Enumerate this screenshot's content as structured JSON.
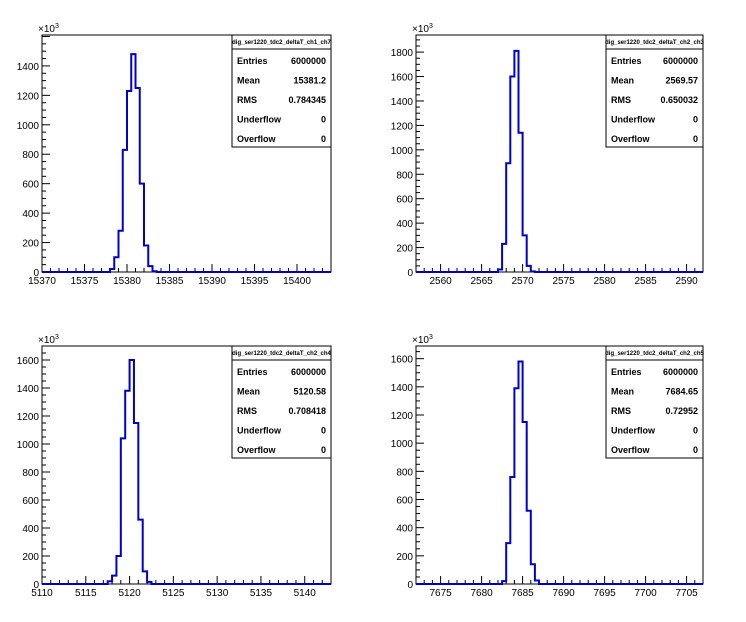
{
  "chart_data": [
    {
      "type": "histogram",
      "title": "dig_ser1220_tdc2_deltaT_ch1_ch7",
      "y_exponent": "10^3",
      "xlim": [
        15370,
        15404
      ],
      "ylim": [
        0,
        1610
      ],
      "x_ticks": [
        15370,
        15375,
        15380,
        15385,
        15390,
        15395,
        15400
      ],
      "y_ticks": [
        0,
        200,
        400,
        600,
        800,
        1000,
        1200,
        1400
      ],
      "bins": [
        {
          "x": 15378.0,
          "y": 20
        },
        {
          "x": 15378.5,
          "y": 100
        },
        {
          "x": 15379.0,
          "y": 280
        },
        {
          "x": 15379.5,
          "y": 830
        },
        {
          "x": 15380.0,
          "y": 1230
        },
        {
          "x": 15380.5,
          "y": 1480
        },
        {
          "x": 15381.0,
          "y": 1250
        },
        {
          "x": 15381.5,
          "y": 600
        },
        {
          "x": 15382.0,
          "y": 180
        },
        {
          "x": 15382.5,
          "y": 40
        },
        {
          "x": 15383.0,
          "y": 5
        }
      ],
      "stats": {
        "entries_label": "Entries",
        "entries": "6000000",
        "mean_label": "Mean",
        "mean": "15381.2",
        "rms_label": "RMS",
        "rms": "0.784345",
        "underflow_label": "Underflow",
        "underflow": "0",
        "overflow_label": "Overflow",
        "overflow": "0"
      },
      "line_color": "#0000cc"
    },
    {
      "type": "histogram",
      "title": "dig_ser1220_tdc2_deltaT_ch2_ch3",
      "y_exponent": "10^3",
      "xlim": [
        2557,
        2592
      ],
      "ylim": [
        0,
        1940
      ],
      "x_ticks": [
        2560,
        2565,
        2570,
        2575,
        2580,
        2585,
        2590
      ],
      "y_ticks": [
        0,
        200,
        400,
        600,
        800,
        1000,
        1200,
        1400,
        1600,
        1800
      ],
      "bins": [
        {
          "x": 2567.0,
          "y": 20
        },
        {
          "x": 2567.5,
          "y": 230
        },
        {
          "x": 2568.0,
          "y": 890
        },
        {
          "x": 2568.5,
          "y": 1600
        },
        {
          "x": 2569.0,
          "y": 1810
        },
        {
          "x": 2569.5,
          "y": 1140
        },
        {
          "x": 2570.0,
          "y": 300
        },
        {
          "x": 2570.5,
          "y": 50
        },
        {
          "x": 2571.0,
          "y": 5
        }
      ],
      "stats": {
        "entries_label": "Entries",
        "entries": "6000000",
        "mean_label": "Mean",
        "mean": "2569.57",
        "rms_label": "RMS",
        "rms": "0.650032",
        "underflow_label": "Underflow",
        "underflow": "0",
        "overflow_label": "Overflow",
        "overflow": "0"
      },
      "line_color": "#0000cc"
    },
    {
      "type": "histogram",
      "title": "dig_ser1220_tdc2_deltaT_ch2_ch4",
      "y_exponent": "10^3",
      "xlim": [
        5110,
        5143
      ],
      "ylim": [
        0,
        1700
      ],
      "x_ticks": [
        5110,
        5115,
        5120,
        5125,
        5130,
        5135,
        5140
      ],
      "y_ticks": [
        0,
        200,
        400,
        600,
        800,
        1000,
        1200,
        1400,
        1600
      ],
      "bins": [
        {
          "x": 5117.5,
          "y": 20
        },
        {
          "x": 5118.0,
          "y": 60
        },
        {
          "x": 5118.5,
          "y": 200
        },
        {
          "x": 5119.0,
          "y": 1040
        },
        {
          "x": 5119.5,
          "y": 1380
        },
        {
          "x": 5120.0,
          "y": 1600
        },
        {
          "x": 5120.5,
          "y": 1150
        },
        {
          "x": 5121.0,
          "y": 460
        },
        {
          "x": 5121.5,
          "y": 90
        },
        {
          "x": 5122.0,
          "y": 15
        }
      ],
      "stats": {
        "entries_label": "Entries",
        "entries": "6000000",
        "mean_label": "Mean",
        "mean": "5120.58",
        "rms_label": "RMS",
        "rms": "0.708418",
        "underflow_label": "Underflow",
        "underflow": "0",
        "overflow_label": "Overflow",
        "overflow": "0"
      },
      "line_color": "#0000cc"
    },
    {
      "type": "histogram",
      "title": "dig_ser1220_tdc2_deltaT_ch2_ch5",
      "y_exponent": "10^3",
      "xlim": [
        7672,
        7707
      ],
      "ylim": [
        0,
        1690
      ],
      "x_ticks": [
        7675,
        7680,
        7685,
        7690,
        7695,
        7700,
        7705
      ],
      "y_ticks": [
        0,
        200,
        400,
        600,
        800,
        1000,
        1200,
        1400,
        1600
      ],
      "bins": [
        {
          "x": 7682.5,
          "y": 20
        },
        {
          "x": 7683.0,
          "y": 290
        },
        {
          "x": 7683.5,
          "y": 760
        },
        {
          "x": 7684.0,
          "y": 1390
        },
        {
          "x": 7684.5,
          "y": 1580
        },
        {
          "x": 7685.0,
          "y": 1150
        },
        {
          "x": 7685.5,
          "y": 520
        },
        {
          "x": 7686.0,
          "y": 140
        },
        {
          "x": 7686.5,
          "y": 25
        }
      ],
      "stats": {
        "entries_label": "Entries",
        "entries": "6000000",
        "mean_label": "Mean",
        "mean": "7684.65",
        "rms_label": "RMS",
        "rms": "0.72952",
        "underflow_label": "Underflow",
        "underflow": "0",
        "overflow_label": "Overflow",
        "overflow": "0"
      },
      "line_color": "#0000cc"
    }
  ]
}
